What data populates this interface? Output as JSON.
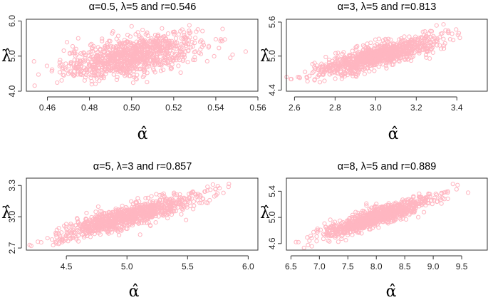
{
  "chart_data": [
    {
      "type": "scatter",
      "title": "α=0.5, λ=5 and r=0.546",
      "xlabel": "α̂",
      "ylabel": "λ̂",
      "xlim": [
        0.45,
        0.56
      ],
      "ylim": [
        4.0,
        6.05
      ],
      "xticks": [
        0.46,
        0.48,
        0.5,
        0.52,
        0.54,
        0.56
      ],
      "xtick_labels": [
        "0.46",
        "0.48",
        "0.50",
        "0.52",
        "0.54",
        "0.56"
      ],
      "yticks": [
        4.0,
        5.0,
        6.0
      ],
      "ytick_labels": [
        "4.0",
        "5.0",
        "6.0"
      ],
      "x_mean": 0.5,
      "x_sd": 0.016,
      "y_mean": 5.0,
      "y_sd": 0.32,
      "r": 0.546,
      "n_points": 1000,
      "marker_color": "#ffb6c1"
    },
    {
      "type": "scatter",
      "title": "α=3, λ=5 and r=0.813",
      "xlabel": "α̂",
      "ylabel": "λ̂",
      "xlim": [
        2.56,
        3.55
      ],
      "ylim": [
        4.38,
        5.65
      ],
      "xticks": [
        2.6,
        2.8,
        3.0,
        3.2,
        3.4
      ],
      "xtick_labels": [
        "2.6",
        "2.8",
        "3.0",
        "3.2",
        "3.4"
      ],
      "yticks": [
        4.4,
        5.0,
        5.6
      ],
      "ytick_labels": [
        "4.4",
        "5.0",
        "5.6"
      ],
      "x_mean": 3.0,
      "x_sd": 0.15,
      "y_mean": 5.0,
      "y_sd": 0.17,
      "r": 0.813,
      "n_points": 1000,
      "marker_color": "#ffb6c1"
    },
    {
      "type": "scatter",
      "title": "α=5, λ=3 and r=0.857",
      "xlabel": "α̂",
      "ylabel": "λ̂",
      "xlim": [
        4.17,
        6.08
      ],
      "ylim": [
        2.68,
        3.37
      ],
      "xticks": [
        4.5,
        5.0,
        5.5,
        6.0
      ],
      "xtick_labels": [
        "4.5",
        "5.0",
        "5.5",
        "6.0"
      ],
      "yticks": [
        2.7,
        3.0,
        3.3
      ],
      "ytick_labels": [
        "2.7",
        "3.0",
        "3.3"
      ],
      "x_mean": 5.0,
      "x_sd": 0.28,
      "y_mean": 3.0,
      "y_sd": 0.1,
      "r": 0.857,
      "n_points": 1000,
      "marker_color": "#ffb6c1"
    },
    {
      "type": "scatter",
      "title": "α=8, λ=5 and r=0.889",
      "xlabel": "α̂",
      "ylabel": "λ̂",
      "xlim": [
        6.42,
        9.95
      ],
      "ylim": [
        4.5,
        5.6
      ],
      "xticks": [
        6.5,
        7.0,
        7.5,
        8.0,
        8.5,
        9.0,
        9.5
      ],
      "xtick_labels": [
        "6.5",
        "7.0",
        "7.5",
        "8.0",
        "8.5",
        "9.0",
        "9.5"
      ],
      "yticks": [
        4.6,
        5.0,
        5.4
      ],
      "ytick_labels": [
        "4.6",
        "5.0",
        "5.4"
      ],
      "x_mean": 8.0,
      "x_sd": 0.48,
      "y_mean": 5.0,
      "y_sd": 0.15,
      "r": 0.889,
      "n_points": 1000,
      "marker_color": "#ffb6c1"
    }
  ]
}
